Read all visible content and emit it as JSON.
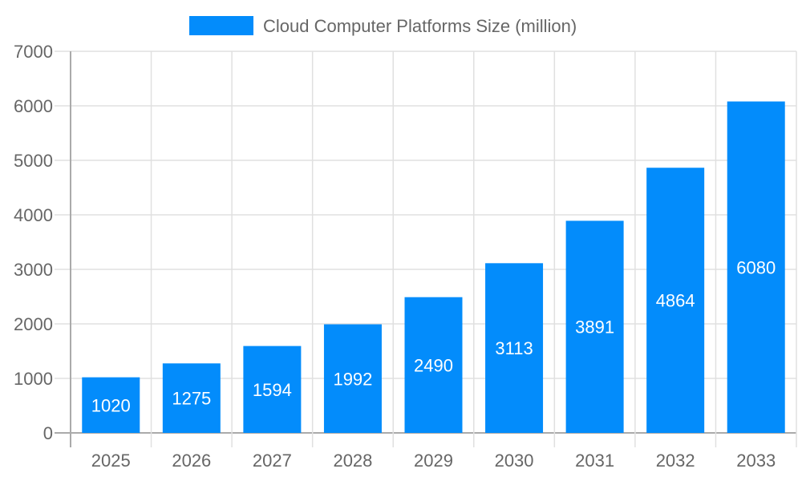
{
  "chart_data": {
    "type": "bar",
    "title": "",
    "xlabel": "",
    "ylabel": "",
    "categories": [
      "2025",
      "2026",
      "2027",
      "2028",
      "2029",
      "2030",
      "2031",
      "2032",
      "2033"
    ],
    "series": [
      {
        "name": "Cloud Computer Platforms Size (million)",
        "values": [
          1020,
          1275,
          1594,
          1992,
          2490,
          3113,
          3891,
          4864,
          6080
        ],
        "color": "#038cfb"
      }
    ],
    "ylim": [
      0,
      7000
    ],
    "yticks": [
      0,
      1000,
      2000,
      3000,
      4000,
      5000,
      6000,
      7000
    ],
    "grid": true,
    "legend_position": "top",
    "data_labels": true
  }
}
